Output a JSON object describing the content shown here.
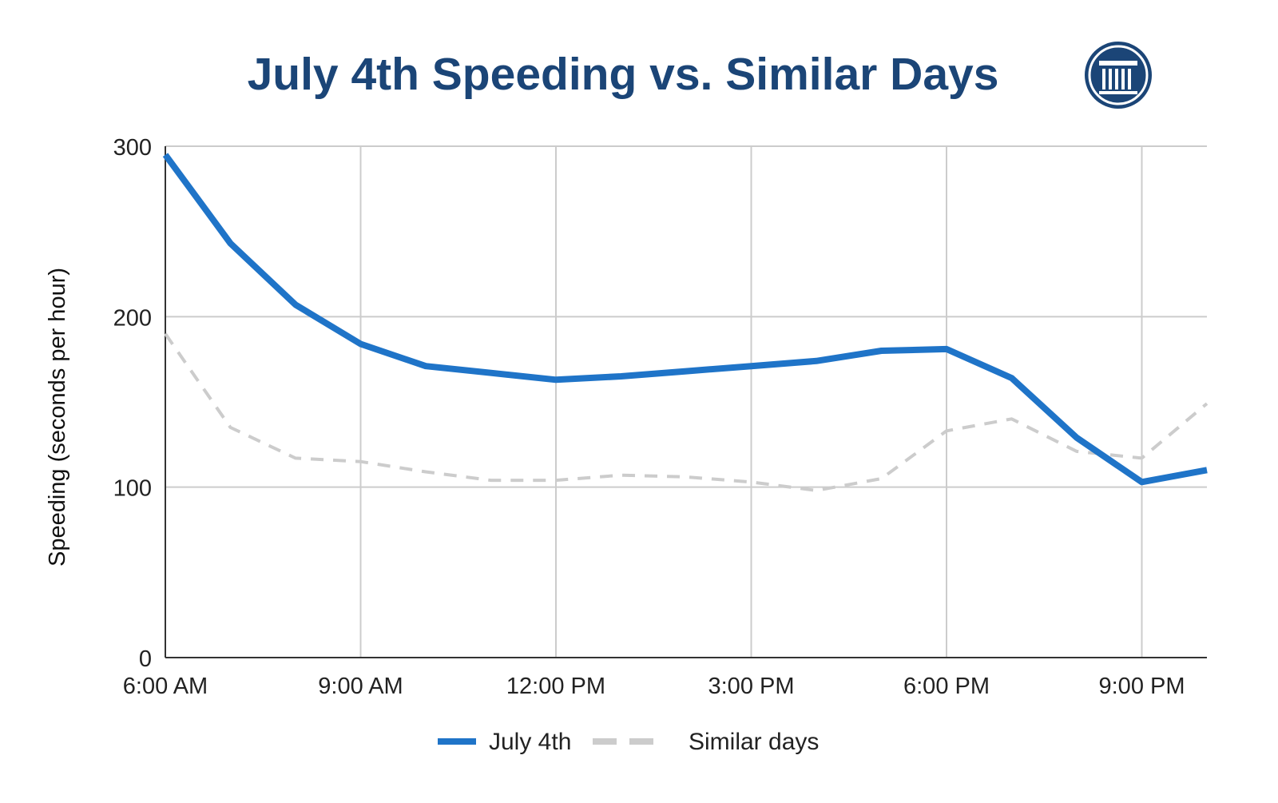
{
  "chart_data": {
    "type": "line",
    "title": "July 4th Speeding vs. Similar Days",
    "xlabel": "",
    "ylabel": "Speeding (seconds per hour)",
    "ylim": [
      0,
      300
    ],
    "y_ticks": [
      "0",
      "100",
      "200",
      "300"
    ],
    "y_tick_values": [
      0,
      100,
      200,
      300
    ],
    "x_ticks": [
      "6:00 AM",
      "9:00 AM",
      "12:00 PM",
      "3:00 PM",
      "6:00 PM",
      "9:00 PM"
    ],
    "x_tick_hours": [
      6,
      9,
      12,
      15,
      18,
      21
    ],
    "xlim_hours": [
      6,
      22
    ],
    "grid": true,
    "legend_position": "bottom",
    "x_hours": [
      6,
      7,
      8,
      9,
      10,
      11,
      12,
      13,
      14,
      15,
      16,
      17,
      18,
      19,
      20,
      21,
      22
    ],
    "series": [
      {
        "name": "July 4th",
        "color": "#1f74c8",
        "style": "solid",
        "values": [
          295,
          243,
          207,
          184,
          171,
          167,
          163,
          165,
          168,
          171,
          174,
          180,
          181,
          164,
          129,
          103,
          110
        ]
      },
      {
        "name": "Similar days",
        "color": "#cccccc",
        "style": "dashed",
        "values": [
          190,
          135,
          117,
          115,
          109,
          104,
          104,
          107,
          106,
          103,
          98,
          105,
          133,
          140,
          121,
          117,
          149
        ]
      }
    ]
  },
  "logo": {
    "icon": "column-building-icon",
    "color": "#1b4577"
  }
}
